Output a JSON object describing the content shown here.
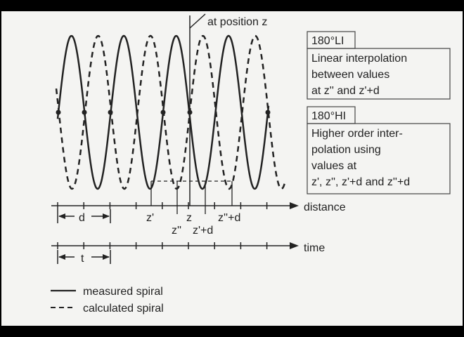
{
  "marker": "at position z",
  "boxes": [
    {
      "title": "180°LI",
      "lines": [
        "Linear interpolation",
        "between values",
        "at z'' and z'+d"
      ]
    },
    {
      "title": "180°HI",
      "lines": [
        "Higher order  inter-",
        "polation using",
        "values at",
        "z', z'', z'+d and z''+d"
      ]
    }
  ],
  "axes": {
    "distance": "distance",
    "time": "time",
    "d": "d",
    "t": "t"
  },
  "positions": [
    "z'",
    "z''",
    "z",
    "z'+d",
    "z''+d"
  ],
  "legend": [
    "measured spiral",
    "calculated spiral"
  ]
}
